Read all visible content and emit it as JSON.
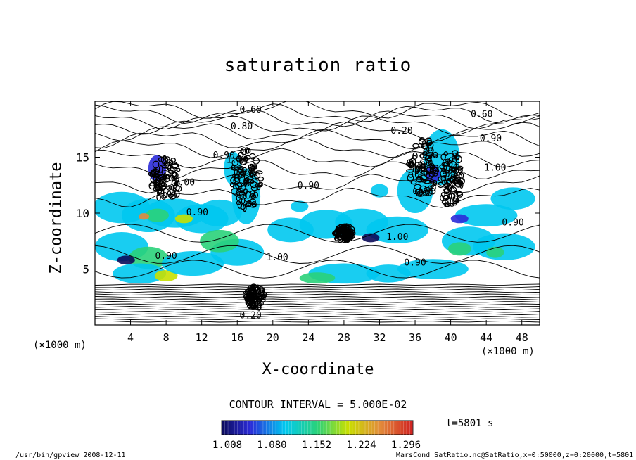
{
  "chart_data": {
    "type": "heatmap",
    "title": "saturation ratio",
    "xlabel": "X-coordinate",
    "ylabel": "Z-coordinate",
    "x_unit": "(×1000 m)",
    "y_unit": "(×1000 m)",
    "xlim": [
      0,
      50
    ],
    "ylim": [
      0,
      20
    ],
    "x_ticks": [
      "4",
      "8",
      "12",
      "16",
      "20",
      "24",
      "28",
      "32",
      "36",
      "40",
      "44",
      "48"
    ],
    "y_ticks": [
      "5",
      "10",
      "15"
    ],
    "contour_interval_label": "CONTOUR INTERVAL = 5.000E-02",
    "colorbar": {
      "range": [
        1.008,
        1.296
      ],
      "tick_labels": [
        "1.008",
        "1.080",
        "1.152",
        "1.224",
        "1.296"
      ],
      "colors": [
        "#0b0b5a",
        "#2b2bd8",
        "#00c8f0",
        "#2ad27a",
        "#c8e000",
        "#e28a3a",
        "#d02020"
      ]
    },
    "contour_labels": [
      "0.60",
      "0.80",
      "0.20",
      "0.60",
      "0.90",
      "0.90",
      "0.90",
      "1.00",
      "0.90",
      "1.00",
      "1.00",
      "0.90",
      "1.00",
      "0.90",
      "0.90",
      "1.00",
      "0.20"
    ],
    "time_label": "t=5801 s"
  },
  "footer": {
    "left": "/usr/bin/gpview   2008-12-11",
    "right": "MarsCond_SatRatio.nc@SatRatio,x=0:50000,z=0:20000,t=5801"
  }
}
